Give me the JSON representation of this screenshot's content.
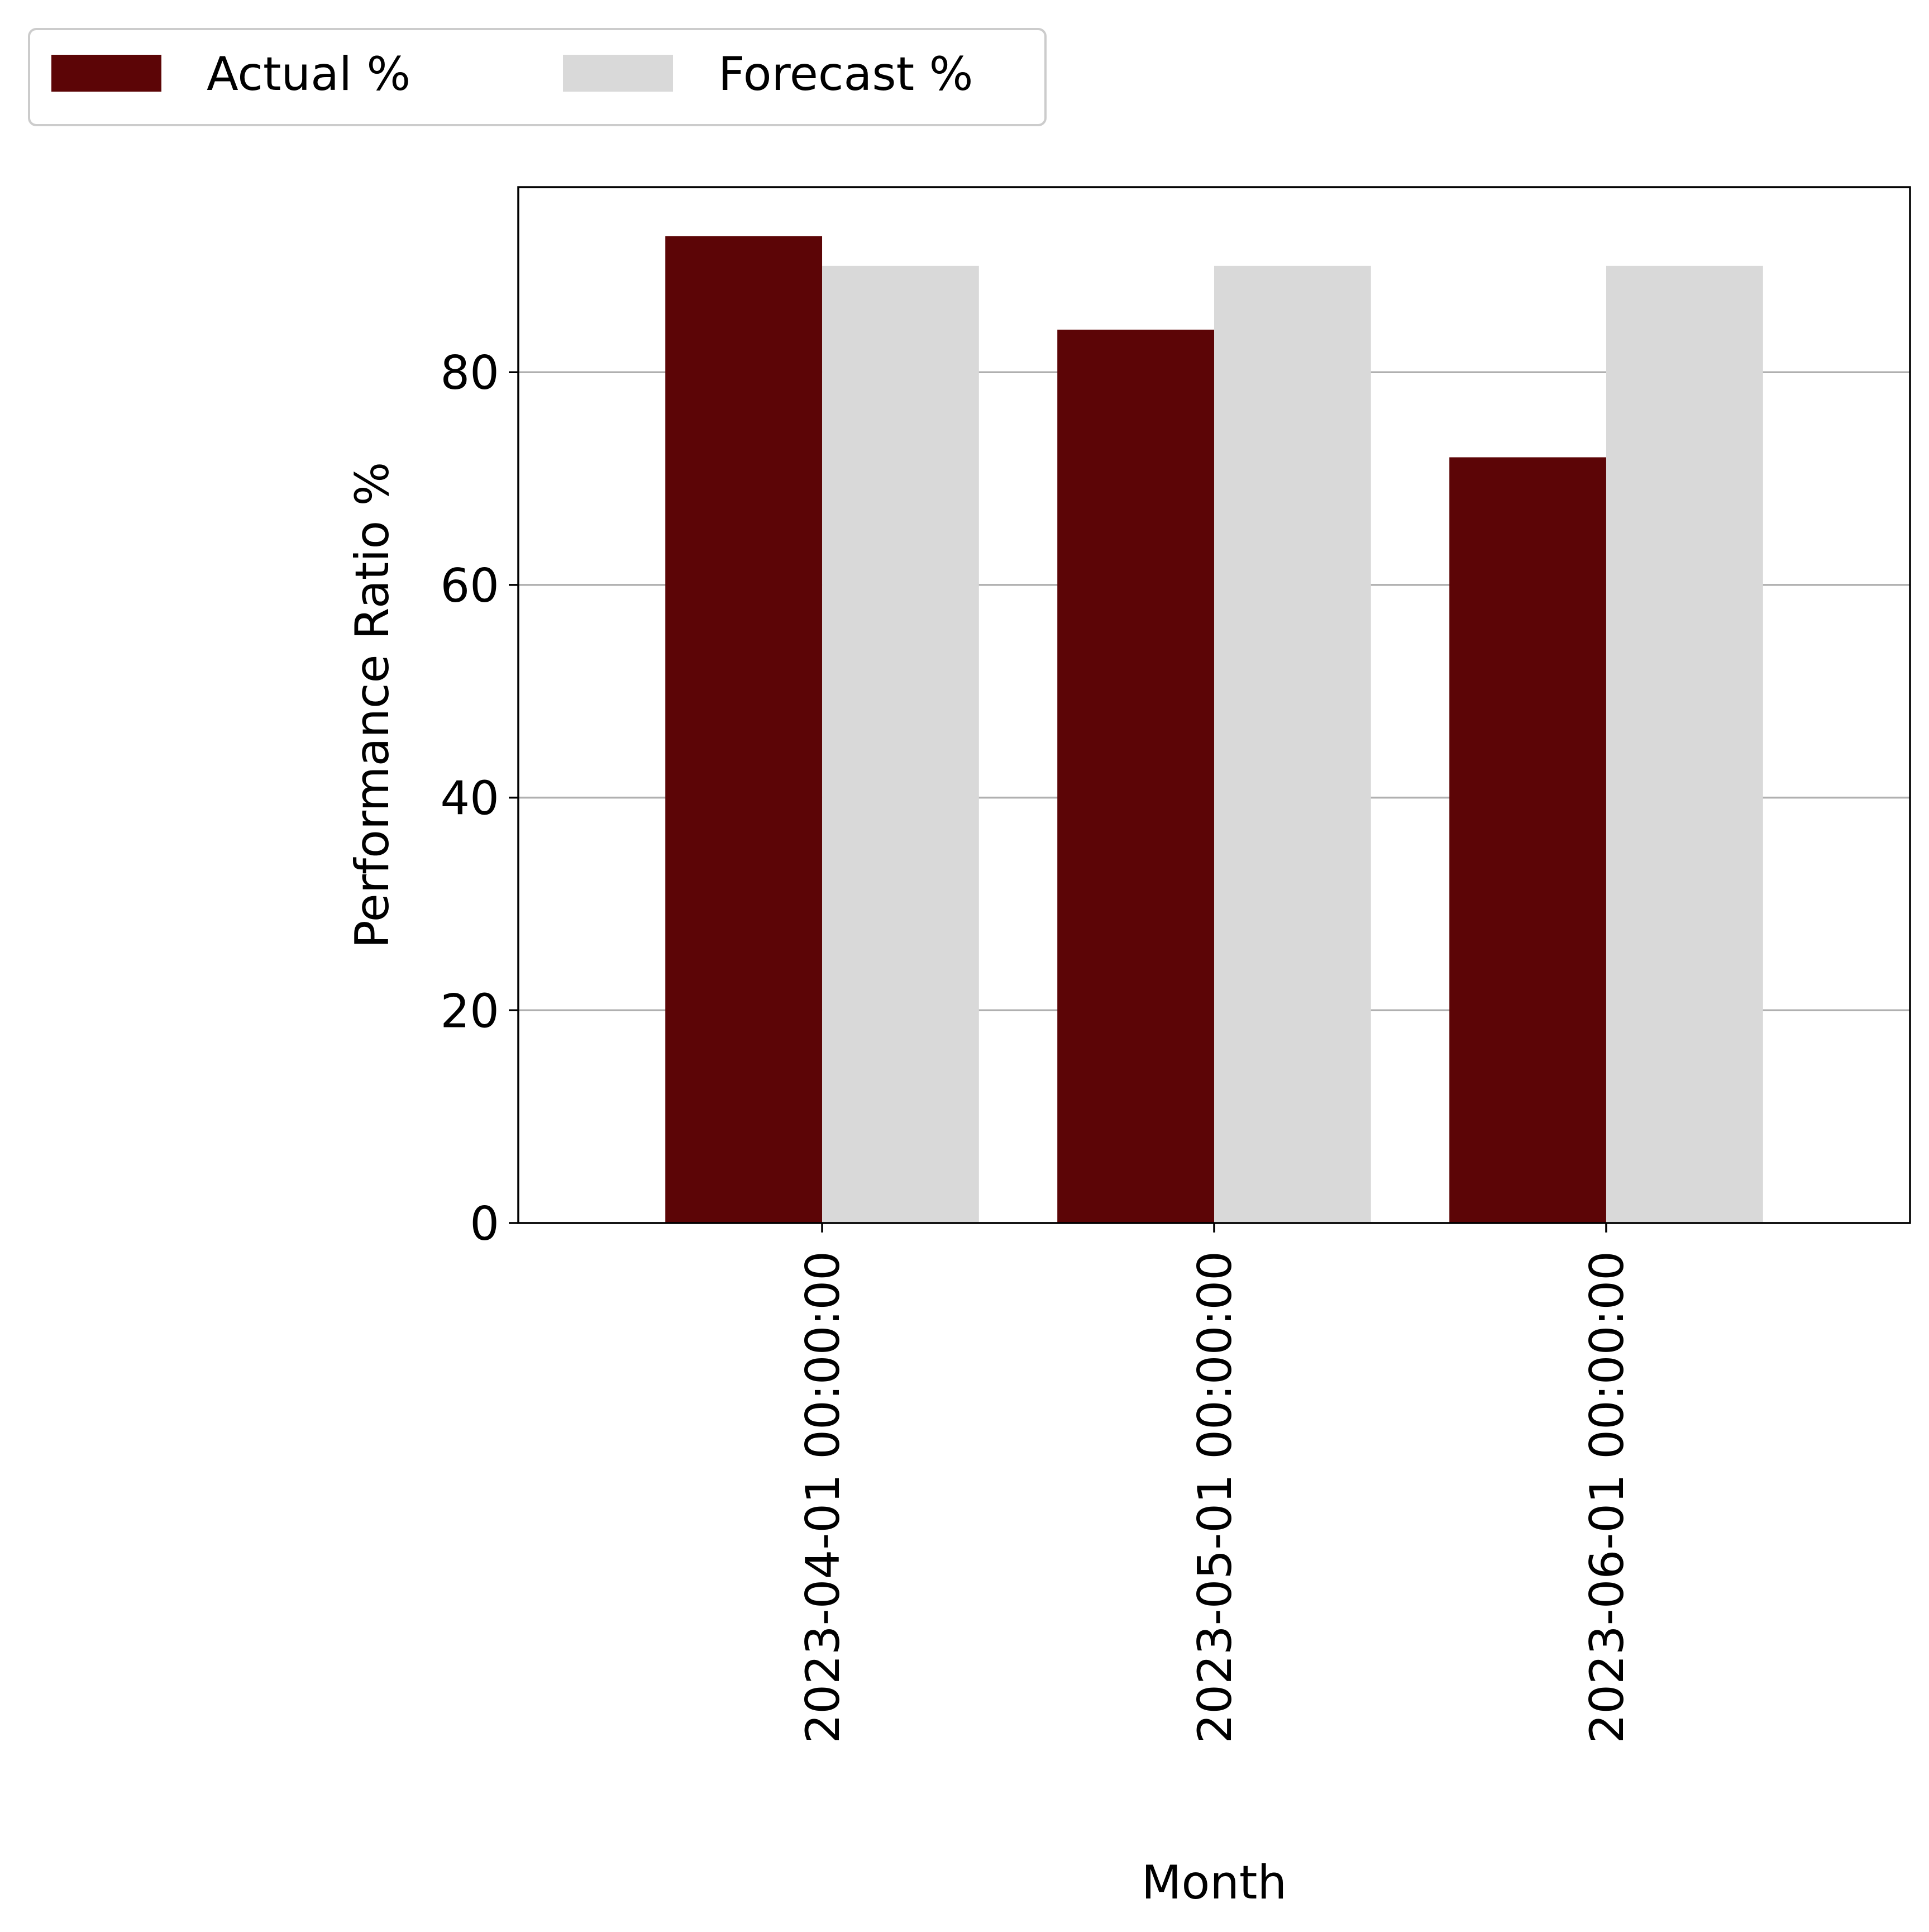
{
  "chart_data": {
    "type": "bar",
    "categories": [
      "2023-04-01 00:00:00",
      "2023-05-01 00:00:00",
      "2023-06-01 00:00:00"
    ],
    "series": [
      {
        "name": "Actual %",
        "values": [
          92.8,
          84.0,
          72.0
        ],
        "color": "#5c0506"
      },
      {
        "name": "Forecast %",
        "values": [
          90.0,
          90.0,
          90.0
        ],
        "color": "#d9d9d9"
      }
    ],
    "title": "",
    "xlabel": "Month",
    "ylabel": "Performance Ratio %",
    "ylim": [
      0,
      97.4
    ],
    "yticks": [
      0,
      20,
      40,
      60,
      80
    ],
    "grid": "y",
    "legend_position": "top-left"
  }
}
